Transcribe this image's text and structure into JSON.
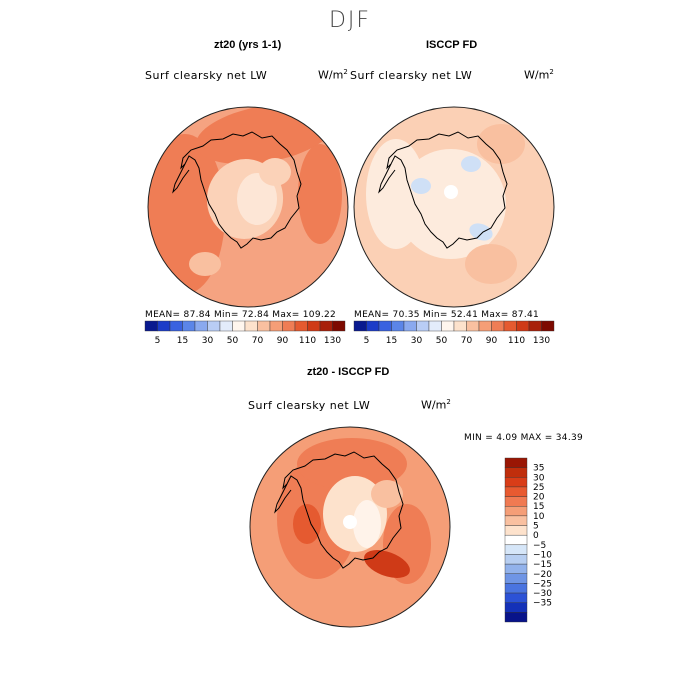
{
  "page_title": "DJF",
  "palette": {
    "positive": [
      "#fde2cc",
      "#f9c0a0",
      "#f59e77",
      "#f07a52",
      "#e85a30",
      "#d93d18",
      "#c02e0c",
      "#9a1604"
    ],
    "negative": [
      "#d6e6f8",
      "#b7cef1",
      "#92b2eb",
      "#6f95e5",
      "#4a74e0",
      "#2c52d6",
      "#1431b8",
      "#08138a"
    ],
    "map_fill": "#f9c0a0",
    "outline": "#000000"
  },
  "chart_data": [
    {
      "type": "heatmap",
      "title": "zt20 (yrs 1-1)",
      "field_label": "Surf clearsky net LW",
      "units_base": "W/m",
      "units_exp": "2",
      "stats": {
        "mean": 87.84,
        "min": 72.84,
        "max": 109.22
      },
      "stats_text": "MEAN=   87.84   Min=   72.84   Max=  109.22",
      "colorbar": {
        "orientation": "horizontal",
        "colors": [
          "#0a1a8f",
          "#1c3cc8",
          "#3a62e0",
          "#5b85e8",
          "#8aa9ef",
          "#b9cdf5",
          "#e3ecfb",
          "#fff6ee",
          "#fde2cc",
          "#f9c0a0",
          "#f59e77",
          "#ef7d55",
          "#e55a30",
          "#cf3a17",
          "#a8200a",
          "#7d0a00"
        ],
        "tick_labels": [
          "5",
          "15",
          "30",
          "50",
          "70",
          "90",
          "110",
          "130"
        ]
      },
      "dominant_range": "70-110"
    },
    {
      "type": "heatmap",
      "title": "ISCCP FD",
      "field_label": "Surf clearsky net LW",
      "units_base": "W/m",
      "units_exp": "2",
      "stats": {
        "mean": 70.35,
        "min": 52.41,
        "max": 87.41
      },
      "stats_text": "MEAN=   70.35   Min=   52.41   Max=   87.41",
      "colorbar": {
        "orientation": "horizontal",
        "colors": [
          "#0a1a8f",
          "#1c3cc8",
          "#3a62e0",
          "#5b85e8",
          "#8aa9ef",
          "#b9cdf5",
          "#e3ecfb",
          "#fff6ee",
          "#fde2cc",
          "#f9c0a0",
          "#f59e77",
          "#ef7d55",
          "#e55a30",
          "#cf3a17",
          "#a8200a",
          "#7d0a00"
        ],
        "tick_labels": [
          "5",
          "15",
          "30",
          "50",
          "70",
          "90",
          "110",
          "130"
        ]
      },
      "dominant_range": "50-90"
    },
    {
      "type": "heatmap",
      "title": "zt20 - ISCCP FD",
      "field_label": "Surf clearsky net LW",
      "units_base": "W/m",
      "units_exp": "2",
      "stats": {
        "min": 4.09,
        "max": 34.39
      },
      "stats_text": "MIN =     4.09  MAX =   34.39",
      "colorbar": {
        "orientation": "vertical",
        "colors": [
          "#9a1604",
          "#c02e0c",
          "#d93d18",
          "#e85a30",
          "#f07a52",
          "#f59e77",
          "#f9c0a0",
          "#fde2cc",
          "#ffffff",
          "#d6e6f8",
          "#b7cef1",
          "#92b2eb",
          "#6f95e5",
          "#4a74e0",
          "#2c52d6",
          "#1431b8",
          "#08138a"
        ],
        "tick_labels": [
          "35",
          "30",
          "25",
          "20",
          "15",
          "10",
          "5",
          "0",
          "−5",
          "−10",
          "−15",
          "−20",
          "−25",
          "−30",
          "−35"
        ]
      },
      "dominant_range": "10-25"
    }
  ]
}
